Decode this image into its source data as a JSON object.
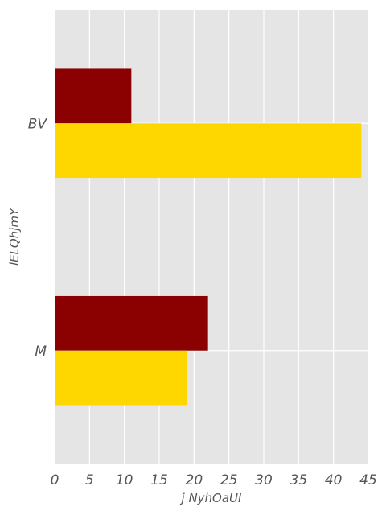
{
  "chart_data": {
    "type": "bar",
    "orientation": "horizontal",
    "categories": [
      "BV",
      "M"
    ],
    "series": [
      {
        "values": [
          11,
          22
        ],
        "color": "#8B0000"
      },
      {
        "values": [
          44,
          19
        ],
        "color": "#FFD700"
      }
    ],
    "xlabel": "j NyhOaUI",
    "ylabel": "lELQhjmY",
    "xlim": [
      0,
      45
    ],
    "xticks": [
      0,
      5,
      10,
      15,
      20,
      25,
      30,
      35,
      40,
      45
    ],
    "xtick_labels": [
      "0",
      "5",
      "10",
      "15",
      "20",
      "25",
      "30",
      "35",
      "40",
      "45"
    ],
    "grid": true,
    "background": "#E5E5E5"
  }
}
